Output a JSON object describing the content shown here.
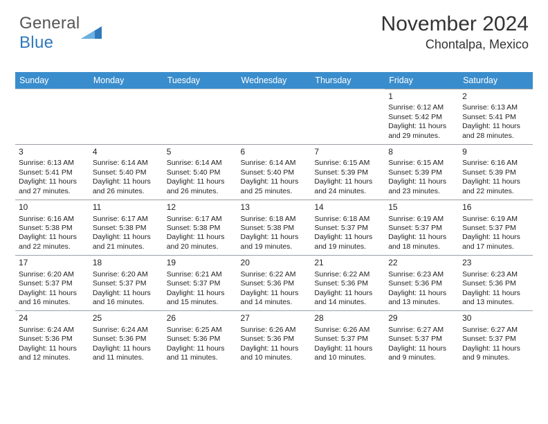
{
  "logo": {
    "text_general": "General",
    "text_blue": "Blue",
    "triangle_color": "#2f79bb"
  },
  "title": "November 2024",
  "location": "Chontalpa, Mexico",
  "colors": {
    "header_bg": "#3a8dcc",
    "header_text": "#ffffff",
    "cell_border": "#9aa0a6",
    "cell_border_light": "#c9cccf",
    "background": "#ffffff",
    "text": "#222222",
    "title_text": "#333333"
  },
  "typography": {
    "title_fontsize": 30,
    "location_fontsize": 18,
    "header_fontsize": 12.5,
    "cell_fontsize": 10.5,
    "daynum_fontsize": 12
  },
  "day_headers": [
    "Sunday",
    "Monday",
    "Tuesday",
    "Wednesday",
    "Thursday",
    "Friday",
    "Saturday"
  ],
  "weeks": [
    [
      null,
      null,
      null,
      null,
      null,
      {
        "n": "1",
        "sunrise": "6:12 AM",
        "sunset": "5:42 PM",
        "daylight": "11 hours and 29 minutes."
      },
      {
        "n": "2",
        "sunrise": "6:13 AM",
        "sunset": "5:41 PM",
        "daylight": "11 hours and 28 minutes."
      }
    ],
    [
      {
        "n": "3",
        "sunrise": "6:13 AM",
        "sunset": "5:41 PM",
        "daylight": "11 hours and 27 minutes."
      },
      {
        "n": "4",
        "sunrise": "6:14 AM",
        "sunset": "5:40 PM",
        "daylight": "11 hours and 26 minutes."
      },
      {
        "n": "5",
        "sunrise": "6:14 AM",
        "sunset": "5:40 PM",
        "daylight": "11 hours and 26 minutes."
      },
      {
        "n": "6",
        "sunrise": "6:14 AM",
        "sunset": "5:40 PM",
        "daylight": "11 hours and 25 minutes."
      },
      {
        "n": "7",
        "sunrise": "6:15 AM",
        "sunset": "5:39 PM",
        "daylight": "11 hours and 24 minutes."
      },
      {
        "n": "8",
        "sunrise": "6:15 AM",
        "sunset": "5:39 PM",
        "daylight": "11 hours and 23 minutes."
      },
      {
        "n": "9",
        "sunrise": "6:16 AM",
        "sunset": "5:39 PM",
        "daylight": "11 hours and 22 minutes."
      }
    ],
    [
      {
        "n": "10",
        "sunrise": "6:16 AM",
        "sunset": "5:38 PM",
        "daylight": "11 hours and 22 minutes."
      },
      {
        "n": "11",
        "sunrise": "6:17 AM",
        "sunset": "5:38 PM",
        "daylight": "11 hours and 21 minutes."
      },
      {
        "n": "12",
        "sunrise": "6:17 AM",
        "sunset": "5:38 PM",
        "daylight": "11 hours and 20 minutes."
      },
      {
        "n": "13",
        "sunrise": "6:18 AM",
        "sunset": "5:38 PM",
        "daylight": "11 hours and 19 minutes."
      },
      {
        "n": "14",
        "sunrise": "6:18 AM",
        "sunset": "5:37 PM",
        "daylight": "11 hours and 19 minutes."
      },
      {
        "n": "15",
        "sunrise": "6:19 AM",
        "sunset": "5:37 PM",
        "daylight": "11 hours and 18 minutes."
      },
      {
        "n": "16",
        "sunrise": "6:19 AM",
        "sunset": "5:37 PM",
        "daylight": "11 hours and 17 minutes."
      }
    ],
    [
      {
        "n": "17",
        "sunrise": "6:20 AM",
        "sunset": "5:37 PM",
        "daylight": "11 hours and 16 minutes."
      },
      {
        "n": "18",
        "sunrise": "6:20 AM",
        "sunset": "5:37 PM",
        "daylight": "11 hours and 16 minutes."
      },
      {
        "n": "19",
        "sunrise": "6:21 AM",
        "sunset": "5:37 PM",
        "daylight": "11 hours and 15 minutes."
      },
      {
        "n": "20",
        "sunrise": "6:22 AM",
        "sunset": "5:36 PM",
        "daylight": "11 hours and 14 minutes."
      },
      {
        "n": "21",
        "sunrise": "6:22 AM",
        "sunset": "5:36 PM",
        "daylight": "11 hours and 14 minutes."
      },
      {
        "n": "22",
        "sunrise": "6:23 AM",
        "sunset": "5:36 PM",
        "daylight": "11 hours and 13 minutes."
      },
      {
        "n": "23",
        "sunrise": "6:23 AM",
        "sunset": "5:36 PM",
        "daylight": "11 hours and 13 minutes."
      }
    ],
    [
      {
        "n": "24",
        "sunrise": "6:24 AM",
        "sunset": "5:36 PM",
        "daylight": "11 hours and 12 minutes."
      },
      {
        "n": "25",
        "sunrise": "6:24 AM",
        "sunset": "5:36 PM",
        "daylight": "11 hours and 11 minutes."
      },
      {
        "n": "26",
        "sunrise": "6:25 AM",
        "sunset": "5:36 PM",
        "daylight": "11 hours and 11 minutes."
      },
      {
        "n": "27",
        "sunrise": "6:26 AM",
        "sunset": "5:36 PM",
        "daylight": "11 hours and 10 minutes."
      },
      {
        "n": "28",
        "sunrise": "6:26 AM",
        "sunset": "5:37 PM",
        "daylight": "11 hours and 10 minutes."
      },
      {
        "n": "29",
        "sunrise": "6:27 AM",
        "sunset": "5:37 PM",
        "daylight": "11 hours and 9 minutes."
      },
      {
        "n": "30",
        "sunrise": "6:27 AM",
        "sunset": "5:37 PM",
        "daylight": "11 hours and 9 minutes."
      }
    ]
  ],
  "labels": {
    "sunrise": "Sunrise: ",
    "sunset": "Sunset: ",
    "daylight": "Daylight: "
  }
}
